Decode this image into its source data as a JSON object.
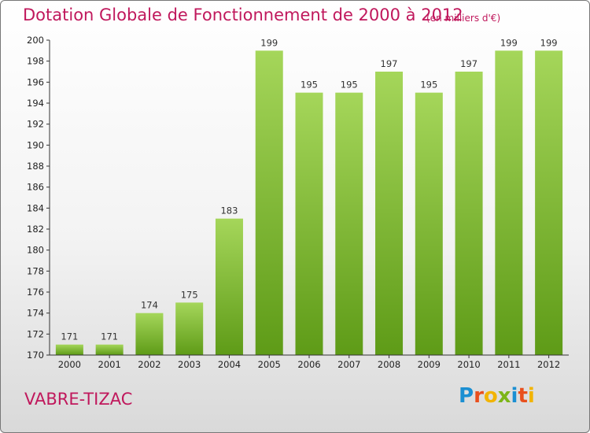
{
  "header": {
    "title": "Dotation Globale de Fonctionnement de 2000 à 2012",
    "unit": "(en milliers d'€)"
  },
  "footer": {
    "place": "VABRE-TIZAC",
    "logo_letters": [
      "P",
      "r",
      "o",
      "x",
      "i",
      "t",
      "i"
    ],
    "logo_colors": [
      "#1b8fd2",
      "#e94f1d",
      "#f2b400",
      "#7cb518",
      "#1b8fd2",
      "#e94f1d",
      "#f2b400"
    ]
  },
  "colors": {
    "bar_light": "#a5d65a",
    "bar_dark": "#5e9b17",
    "accent": "#c0185c"
  },
  "chart_data": {
    "type": "bar",
    "categories": [
      "2000",
      "2001",
      "2002",
      "2003",
      "2004",
      "2005",
      "2006",
      "2007",
      "2008",
      "2009",
      "2010",
      "2011",
      "2012"
    ],
    "values": [
      171,
      171,
      174,
      175,
      183,
      199,
      195,
      195,
      197,
      195,
      197,
      199,
      199
    ],
    "data_labels": [
      "171",
      "171",
      "174",
      "175",
      "183",
      "199",
      "195",
      "195",
      "197",
      "195",
      "197",
      "199",
      "199"
    ],
    "y_ticks": [
      "170",
      "172",
      "174",
      "176",
      "178",
      "180",
      "182",
      "184",
      "186",
      "188",
      "190",
      "192",
      "194",
      "196",
      "198",
      "200"
    ],
    "ylim": [
      170,
      200
    ],
    "grid": false,
    "legend": "none"
  }
}
